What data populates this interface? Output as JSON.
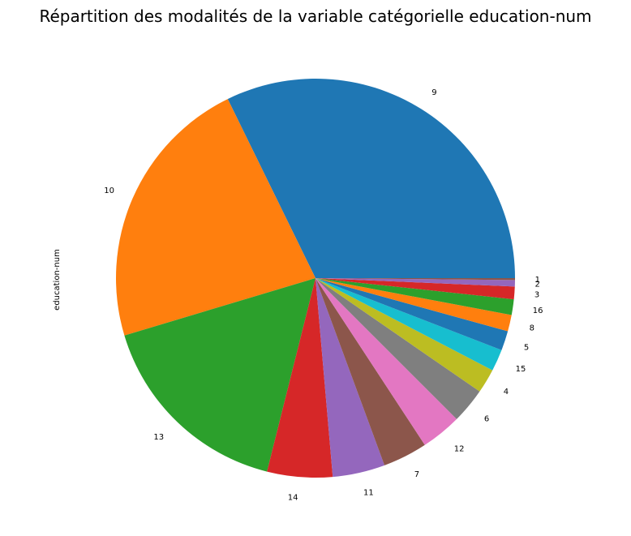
{
  "chart_data": {
    "type": "pie",
    "title": "Répartition des modalités de la variable catégorielle education-num",
    "ylabel": "education-num",
    "start_angle_deg": 0,
    "direction": "counterclockwise",
    "slices": [
      {
        "label": "9",
        "value": 32.25,
        "color": "#1f77b4"
      },
      {
        "label": "10",
        "value": 22.39,
        "color": "#ff7f0e"
      },
      {
        "label": "13",
        "value": 16.45,
        "color": "#2ca02c"
      },
      {
        "label": "14",
        "value": 5.29,
        "color": "#d62728"
      },
      {
        "label": "11",
        "value": 4.24,
        "color": "#9467bd"
      },
      {
        "label": "7",
        "value": 3.61,
        "color": "#8c564b"
      },
      {
        "label": "12",
        "value": 3.28,
        "color": "#e377c2"
      },
      {
        "label": "6",
        "value": 2.87,
        "color": "#7f7f7f"
      },
      {
        "label": "4",
        "value": 1.98,
        "color": "#bcbd22"
      },
      {
        "label": "15",
        "value": 1.77,
        "color": "#17becf"
      },
      {
        "label": "5",
        "value": 1.58,
        "color": "#1f77b4"
      },
      {
        "label": "8",
        "value": 1.33,
        "color": "#ff7f0e"
      },
      {
        "label": "16",
        "value": 1.27,
        "color": "#2ca02c"
      },
      {
        "label": "3",
        "value": 1.02,
        "color": "#d62728"
      },
      {
        "label": "2",
        "value": 0.52,
        "color": "#9467bd"
      },
      {
        "label": "1",
        "value": 0.15,
        "color": "#8c564b"
      }
    ]
  }
}
